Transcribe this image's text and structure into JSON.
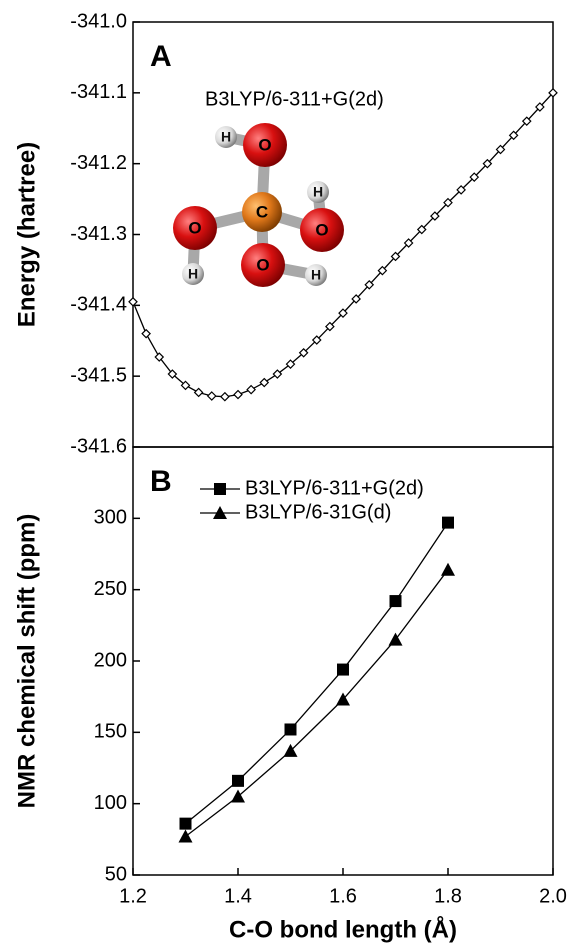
{
  "chart_data": [
    {
      "type": "line",
      "panel_label": "A",
      "ylabel": "Energy (hartree)",
      "annotation": "B3LYP/6-311+G(2d)",
      "molecule_atoms": [
        "C",
        "O",
        "O",
        "O",
        "O",
        "H",
        "H",
        "H",
        "H"
      ],
      "x": [
        1.2,
        1.225,
        1.25,
        1.275,
        1.3,
        1.325,
        1.35,
        1.375,
        1.4,
        1.425,
        1.45,
        1.475,
        1.5,
        1.525,
        1.55,
        1.575,
        1.6,
        1.625,
        1.65,
        1.675,
        1.7,
        1.725,
        1.75,
        1.775,
        1.8,
        1.825,
        1.85,
        1.875,
        1.9,
        1.925,
        1.95,
        1.975,
        2.0
      ],
      "values": [
        -341.395,
        -341.44,
        -341.473,
        -341.497,
        -341.513,
        -341.523,
        -341.528,
        -341.529,
        -341.526,
        -341.519,
        -341.509,
        -341.497,
        -341.483,
        -341.467,
        -341.449,
        -341.43,
        -341.411,
        -341.391,
        -341.371,
        -341.351,
        -341.331,
        -341.312,
        -341.293,
        -341.274,
        -341.255,
        -341.237,
        -341.219,
        -341.2,
        -341.18,
        -341.16,
        -341.14,
        -341.12,
        -341.1
      ],
      "marker": "diamond",
      "color": "#000000",
      "xlim": [
        1.2,
        2.0
      ],
      "ylim": [
        -341.6,
        -341.0
      ],
      "yticks": [
        {
          "value": -341.0,
          "label": "-341.0"
        },
        -341.1,
        -341.2,
        -341.3,
        -341.4,
        -341.5,
        -341.6
      ]
    },
    {
      "type": "line",
      "panel_label": "B",
      "ylabel": "NMR chemical shift (ppm)",
      "xlabel": "C-O bond length (Å)",
      "x": [
        1.3,
        1.4,
        1.5,
        1.6,
        1.7,
        1.8
      ],
      "series": [
        {
          "name": "B3LYP/6-311+G(2d)",
          "color": "#000000",
          "marker": "square",
          "values": [
            86,
            116,
            152,
            194,
            242,
            297
          ]
        },
        {
          "name": "B3LYP/6-31G(d)",
          "color": "#000000",
          "marker": "triangle",
          "values": [
            77,
            105,
            137,
            173,
            215,
            264
          ]
        }
      ],
      "legend": "upper left",
      "xlim": [
        1.2,
        2.0
      ],
      "xticks": [
        1.2,
        1.4,
        1.6,
        1.8,
        {
          "value": 2.0,
          "label": "2.0"
        }
      ],
      "ylim": [
        50,
        350
      ],
      "yticks": [
        50,
        100,
        150,
        200,
        250,
        300
      ]
    }
  ]
}
